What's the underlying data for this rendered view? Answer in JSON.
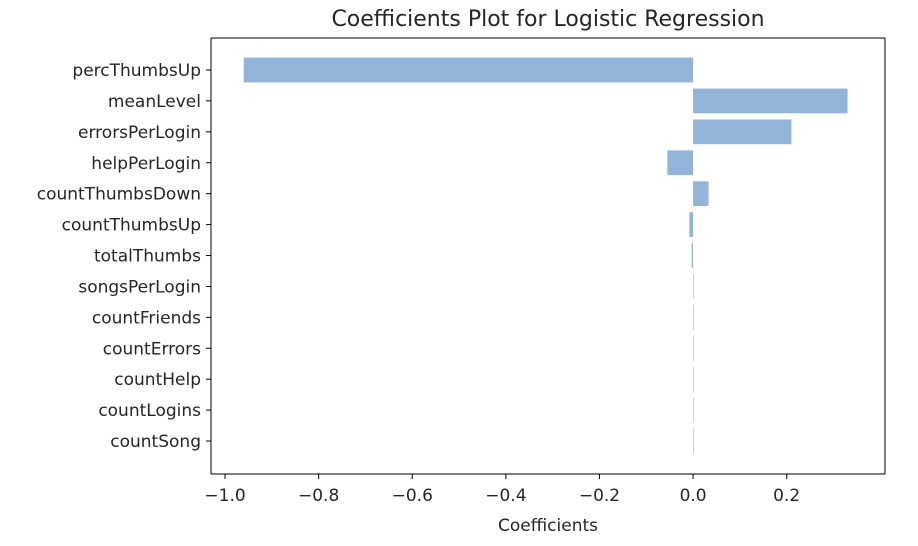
{
  "chart_data": {
    "type": "bar",
    "orientation": "horizontal",
    "title": "Coefficients Plot for Logistic Regression",
    "xlabel": "Coefficients",
    "ylabel": "",
    "categories": [
      "percThumbsUp",
      "meanLevel",
      "errorsPerLogin",
      "helpPerLogin",
      "countThumbsDown",
      "countThumbsUp",
      "totalThumbs",
      "songsPerLogin",
      "countFriends",
      "countErrors",
      "countHelp",
      "countLogins",
      "countSong"
    ],
    "values": [
      -0.96,
      0.33,
      0.21,
      -0.055,
      0.033,
      -0.008,
      -0.003,
      0,
      0,
      0,
      0,
      0,
      0
    ],
    "xlim": [
      -1.03,
      0.41
    ],
    "xticks": [
      -1.0,
      -0.8,
      -0.6,
      -0.4,
      -0.2,
      0.0,
      0.2
    ],
    "xtick_labels": [
      "−1.0",
      "−0.8",
      "−0.6",
      "−0.4",
      "−0.2",
      "0.0",
      "0.2"
    ],
    "grid": false,
    "legend": "none",
    "bar_color": "#92b4d8"
  }
}
